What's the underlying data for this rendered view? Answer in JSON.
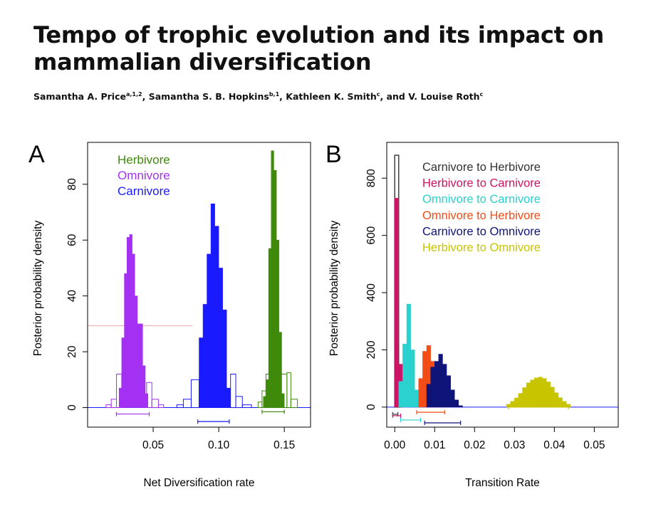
{
  "title": {
    "line1": "Tempo of trophic evolution and its impact on",
    "line2": "mammalian diversification"
  },
  "authors": [
    {
      "name": "Samantha A. Price",
      "sup": "a,1,2",
      "sep": ", "
    },
    {
      "name": "Samantha S. B. Hopkins",
      "sup": "b,1",
      "sep": ", "
    },
    {
      "name": "Kathleen K. Smith",
      "sup": "c",
      "sep": ", and "
    },
    {
      "name": "V. Louise Roth",
      "sup": "c",
      "sep": ""
    }
  ],
  "chart_data": [
    {
      "panel": "A",
      "type": "histogram",
      "xlabel": "Net Diversification rate",
      "ylabel": "Posterior probability density",
      "xlim": [
        0.0,
        0.17
      ],
      "ylim": [
        -7,
        95
      ],
      "xticks": [
        "0.05",
        "0.10",
        "0.15"
      ],
      "xtick_values": [
        0.05,
        0.1,
        0.15
      ],
      "yticks": [
        "0",
        "20",
        "40",
        "60",
        "80"
      ],
      "ytick_values": [
        0,
        20,
        40,
        60,
        80
      ],
      "legend_position": "top-left",
      "hline": {
        "y": 29.3,
        "xmin": 0.0,
        "xmax": 0.08,
        "color": "#f2a6a0"
      },
      "series": [
        {
          "name": "Herbivore",
          "color": "#3f8a0a",
          "bins": [
            [
              0.134,
              0.136,
              4
            ],
            [
              0.136,
              0.138,
              10
            ],
            [
              0.138,
              0.14,
              57
            ],
            [
              0.14,
              0.142,
              92
            ],
            [
              0.142,
              0.144,
              85
            ],
            [
              0.144,
              0.146,
              60
            ],
            [
              0.146,
              0.148,
              27
            ],
            [
              0.148,
              0.15,
              5
            ]
          ],
          "outline": [
            [
              0.13,
              0.133,
              2
            ],
            [
              0.133,
              0.136,
              6
            ],
            [
              0.136,
              0.139,
              12
            ],
            [
              0.139,
              0.152,
              12
            ],
            [
              0.152,
              0.155,
              12.5
            ],
            [
              0.155,
              0.16,
              3
            ]
          ],
          "ci": [
            0.133,
            0.15
          ]
        },
        {
          "name": "Omnivore",
          "color": "#a330f2",
          "bins": [
            [
              0.024,
              0.026,
              7
            ],
            [
              0.026,
              0.028,
              25
            ],
            [
              0.028,
              0.03,
              48
            ],
            [
              0.03,
              0.032,
              61
            ],
            [
              0.032,
              0.034,
              62
            ],
            [
              0.034,
              0.036,
              55
            ],
            [
              0.036,
              0.038,
              40
            ],
            [
              0.038,
              0.04,
              30
            ],
            [
              0.04,
              0.042,
              30
            ],
            [
              0.042,
              0.044,
              15
            ],
            [
              0.044,
              0.046,
              5
            ]
          ],
          "outline": [
            [
              0.014,
              0.018,
              1
            ],
            [
              0.018,
              0.022,
              3
            ],
            [
              0.022,
              0.026,
              12
            ],
            [
              0.045,
              0.049,
              9
            ],
            [
              0.049,
              0.054,
              3
            ],
            [
              0.054,
              0.058,
              1
            ]
          ],
          "ci": [
            0.022,
            0.047
          ]
        },
        {
          "name": "Carnivore",
          "color": "#1a1aff",
          "bins": [
            [
              0.085,
              0.088,
              25
            ],
            [
              0.088,
              0.091,
              37
            ],
            [
              0.091,
              0.094,
              55
            ],
            [
              0.094,
              0.097,
              73
            ],
            [
              0.097,
              0.1,
              65
            ],
            [
              0.1,
              0.103,
              50
            ],
            [
              0.103,
              0.106,
              35
            ],
            [
              0.106,
              0.109,
              7
            ]
          ],
          "outline": [
            [
              0.068,
              0.073,
              1
            ],
            [
              0.073,
              0.079,
              3
            ],
            [
              0.079,
              0.085,
              10
            ],
            [
              0.109,
              0.113,
              12
            ],
            [
              0.113,
              0.118,
              4
            ],
            [
              0.118,
              0.125,
              1
            ]
          ],
          "ci": [
            0.084,
            0.108
          ]
        }
      ]
    },
    {
      "panel": "B",
      "type": "histogram",
      "xlabel": "Transition Rate",
      "ylabel": "Posterior probability density",
      "xlim": [
        -0.002,
        0.056
      ],
      "ylim": [
        -70,
        925
      ],
      "xticks": [
        "0.00",
        "0.01",
        "0.02",
        "0.03",
        "0.04",
        "0.05"
      ],
      "xtick_values": [
        0.0,
        0.01,
        0.02,
        0.03,
        0.04,
        0.05
      ],
      "yticks": [
        "0",
        "200",
        "400",
        "600",
        "800"
      ],
      "ytick_values": [
        0,
        200,
        400,
        600,
        800
      ],
      "legend_position": "top-left",
      "series": [
        {
          "name": "Carnivore to Herbivore",
          "color": "#333333",
          "fill": false,
          "bins": [
            [
              0.0,
              0.001,
              880
            ],
            [
              0.001,
              0.0015,
              25
            ]
          ],
          "ci": [
            -0.0005,
            0.0008
          ]
        },
        {
          "name": "Herbivore to Carnivore",
          "color": "#cc1466",
          "fill": true,
          "bins": [
            [
              0.0,
              0.001,
              730
            ],
            [
              0.001,
              0.002,
              150
            ],
            [
              0.002,
              0.003,
              20
            ]
          ],
          "ci": [
            -0.0005,
            0.0015
          ]
        },
        {
          "name": "Omnivore to Carnivore",
          "color": "#2ad1cf",
          "fill": true,
          "bins": [
            [
              0.001,
              0.002,
              90
            ],
            [
              0.002,
              0.003,
              220
            ],
            [
              0.003,
              0.004,
              360
            ],
            [
              0.004,
              0.005,
              200
            ],
            [
              0.005,
              0.006,
              60
            ],
            [
              0.006,
              0.007,
              10
            ]
          ],
          "ci": [
            0.0015,
            0.0065
          ]
        },
        {
          "name": "Omnivore to Herbivore",
          "color": "#f24d16",
          "fill": true,
          "bins": [
            [
              0.006,
              0.007,
              100
            ],
            [
              0.007,
              0.008,
              195
            ],
            [
              0.008,
              0.009,
              215
            ],
            [
              0.009,
              0.01,
              160
            ],
            [
              0.01,
              0.011,
              100
            ],
            [
              0.011,
              0.012,
              40
            ],
            [
              0.012,
              0.013,
              10
            ]
          ],
          "ci": [
            0.0055,
            0.0125
          ]
        },
        {
          "name": "Carnivore to Omnivore",
          "color": "#0e1478",
          "fill": true,
          "bins": [
            [
              0.008,
              0.009,
              80
            ],
            [
              0.009,
              0.01,
              140
            ],
            [
              0.01,
              0.011,
              160
            ],
            [
              0.011,
              0.012,
              185
            ],
            [
              0.012,
              0.013,
              150
            ],
            [
              0.013,
              0.014,
              110
            ],
            [
              0.014,
              0.015,
              60
            ],
            [
              0.015,
              0.016,
              25
            ],
            [
              0.016,
              0.017,
              5
            ]
          ],
          "ci": [
            0.0075,
            0.0165
          ]
        },
        {
          "name": "Herbivore to Omnivore",
          "color": "#c8c400",
          "fill": true,
          "bins": [
            [
              0.028,
              0.029,
              10
            ],
            [
              0.029,
              0.03,
              20
            ],
            [
              0.03,
              0.031,
              32
            ],
            [
              0.031,
              0.032,
              48
            ],
            [
              0.032,
              0.033,
              68
            ],
            [
              0.033,
              0.034,
              85
            ],
            [
              0.034,
              0.035,
              95
            ],
            [
              0.035,
              0.036,
              102
            ],
            [
              0.036,
              0.037,
              105
            ],
            [
              0.037,
              0.038,
              100
            ],
            [
              0.038,
              0.039,
              88
            ],
            [
              0.039,
              0.04,
              70
            ],
            [
              0.04,
              0.041,
              50
            ],
            [
              0.041,
              0.042,
              33
            ],
            [
              0.042,
              0.043,
              20
            ],
            [
              0.043,
              0.044,
              10
            ]
          ],
          "ci": [
            0.0285,
            0.0435
          ]
        }
      ]
    }
  ]
}
